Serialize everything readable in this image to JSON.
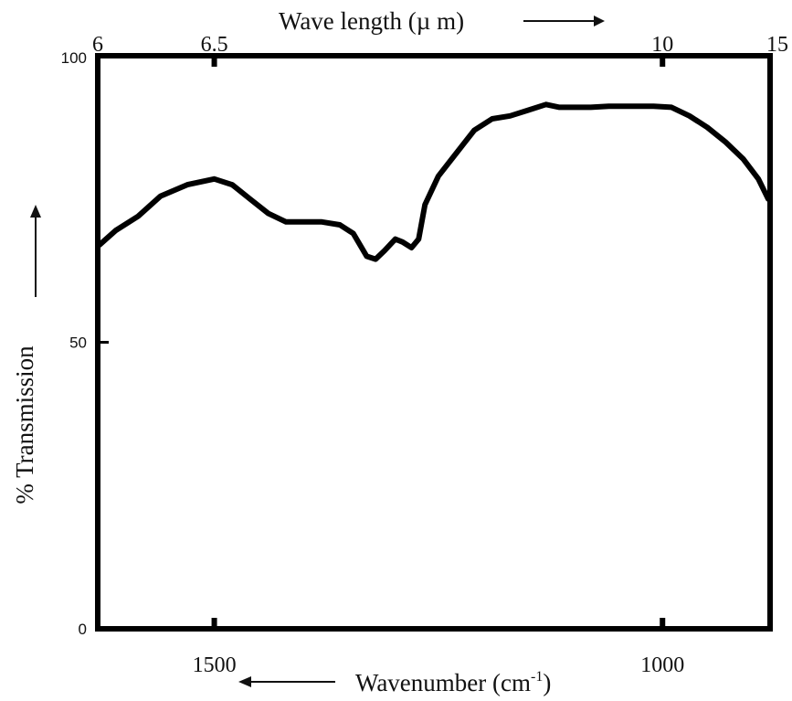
{
  "chart_data": {
    "type": "line",
    "title": "",
    "xlabel": "Wavenumber (cm-1)",
    "xlabel_main": "Wavenumber (cm",
    "xlabel_sup": "-1",
    "xlabel_close": ")",
    "x_top_label": "Wave length (µ m)",
    "ylabel": "% Transmission",
    "xlim": [
      1630,
      880
    ],
    "ylim": [
      0,
      100
    ],
    "x_ticks_bottom": [
      {
        "value": 1500,
        "label": "1500"
      },
      {
        "value": 1000,
        "label": "1000"
      }
    ],
    "x_ticks_top": [
      {
        "value": 1630,
        "label": "6"
      },
      {
        "value": 1500,
        "label": "6.5"
      },
      {
        "value": 1000,
        "label": "10"
      },
      {
        "value": 880,
        "label": "15"
      }
    ],
    "y_ticks": [
      {
        "value": 0,
        "label": "0"
      },
      {
        "value": 50,
        "label": "50"
      },
      {
        "value": 100,
        "label": "100"
      }
    ],
    "grid": false,
    "series": [
      {
        "color": "#000000",
        "points": [
          [
            1628,
            67
          ],
          [
            1610,
            69.5
          ],
          [
            1585,
            72
          ],
          [
            1560,
            75.5
          ],
          [
            1530,
            77.5
          ],
          [
            1500,
            78.5
          ],
          [
            1480,
            77.5
          ],
          [
            1460,
            75
          ],
          [
            1440,
            72.5
          ],
          [
            1420,
            71
          ],
          [
            1400,
            71
          ],
          [
            1380,
            71
          ],
          [
            1360,
            70.5
          ],
          [
            1345,
            69
          ],
          [
            1330,
            65
          ],
          [
            1320,
            64.5
          ],
          [
            1310,
            66
          ],
          [
            1298,
            68
          ],
          [
            1290,
            67.5
          ],
          [
            1280,
            66.5
          ],
          [
            1272,
            68
          ],
          [
            1265,
            74
          ],
          [
            1250,
            79
          ],
          [
            1230,
            83
          ],
          [
            1210,
            87
          ],
          [
            1190,
            89
          ],
          [
            1170,
            89.5
          ],
          [
            1150,
            90.5
          ],
          [
            1130,
            91.5
          ],
          [
            1115,
            91
          ],
          [
            1100,
            91
          ],
          [
            1080,
            91
          ],
          [
            1060,
            91.2
          ],
          [
            1040,
            91.2
          ],
          [
            1010,
            91.2
          ],
          [
            990,
            91
          ],
          [
            970,
            89.5
          ],
          [
            950,
            87.5
          ],
          [
            930,
            85
          ],
          [
            910,
            82
          ],
          [
            893,
            78.5
          ],
          [
            882,
            75
          ]
        ]
      }
    ]
  }
}
